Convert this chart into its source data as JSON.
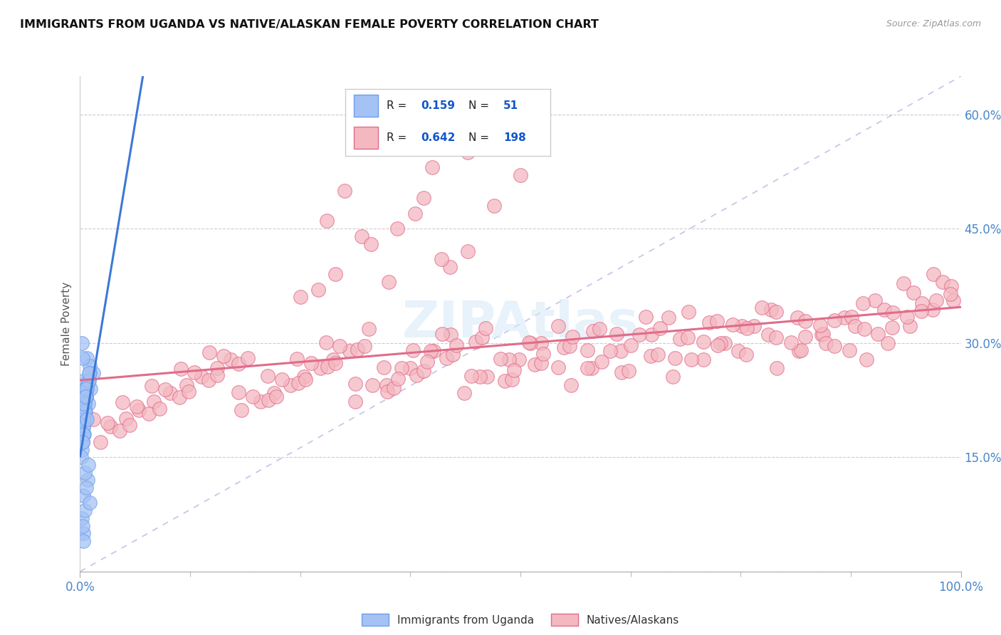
{
  "title": "IMMIGRANTS FROM UGANDA VS NATIVE/ALASKAN FEMALE POVERTY CORRELATION CHART",
  "source_text": "Source: ZipAtlas.com",
  "ylabel": "Female Poverty",
  "x_min": 0.0,
  "x_max": 100.0,
  "y_min": 0.0,
  "y_max": 65.0,
  "yticks": [
    0.0,
    15.0,
    30.0,
    45.0,
    60.0
  ],
  "ytick_labels": [
    "",
    "15.0%",
    "30.0%",
    "45.0%",
    "60.0%"
  ],
  "xtick_labels": [
    "0.0%",
    "100.0%"
  ],
  "color_uganda": "#a4c2f4",
  "color_native": "#f4b8c1",
  "color_uganda_edge": "#6d9eeb",
  "color_native_edge": "#e06c8a",
  "color_uganda_line": "#3c78d8",
  "color_native_line": "#e06c8a",
  "color_tick_label": "#4a86c8",
  "watermark": "ZIPAtlas",
  "uganda_x": [
    0.5,
    0.8,
    0.3,
    1.2,
    0.2,
    0.6,
    0.4,
    1.5,
    0.3,
    0.7,
    0.4,
    0.5,
    1.1,
    0.9,
    0.5,
    0.2,
    0.4,
    0.7,
    1.0,
    0.3,
    0.15,
    0.45,
    0.6,
    0.35,
    0.8,
    1.1,
    0.3,
    0.5,
    0.7,
    0.4,
    0.25,
    0.9,
    0.55,
    0.35,
    0.65,
    1.0,
    0.45,
    0.75,
    0.3,
    0.6,
    0.2,
    0.4,
    0.85,
    0.5,
    1.1,
    0.35,
    0.7,
    0.25,
    0.55,
    0.95,
    0.4
  ],
  "uganda_y": [
    22.5,
    28.0,
    18.0,
    24.0,
    30.0,
    20.0,
    25.0,
    26.0,
    17.0,
    23.0,
    19.0,
    21.0,
    27.0,
    22.0,
    24.0,
    16.0,
    20.0,
    23.0,
    25.0,
    22.0,
    15.0,
    18.0,
    21.0,
    20.0,
    24.0,
    26.0,
    17.0,
    22.0,
    23.0,
    19.0,
    28.0,
    25.0,
    21.0,
    18.0,
    24.0,
    26.0,
    22.0,
    20.0,
    17.0,
    23.0,
    7.0,
    10.0,
    12.0,
    8.0,
    9.0,
    5.0,
    11.0,
    6.0,
    13.0,
    14.0,
    4.0
  ],
  "native_x": [
    5.2,
    8.4,
    12.1,
    15.6,
    18.3,
    22.0,
    25.4,
    28.7,
    31.2,
    34.8,
    37.5,
    40.1,
    43.6,
    46.2,
    49.8,
    52.3,
    55.7,
    58.1,
    61.4,
    64.9,
    67.3,
    70.8,
    73.2,
    76.5,
    79.1,
    81.6,
    84.2,
    86.8,
    89.3,
    91.7,
    94.2,
    96.8,
    99.1,
    3.4,
    6.7,
    10.2,
    13.8,
    17.1,
    20.5,
    23.9,
    27.3,
    30.6,
    33.2,
    36.5,
    39.8,
    42.1,
    45.4,
    48.7,
    51.1,
    54.3,
    57.6,
    60.2,
    63.5,
    66.8,
    69.4,
    72.7,
    75.1,
    78.4,
    81.8,
    84.3,
    87.6,
    90.2,
    93.5,
    96.9,
    4.5,
    7.8,
    11.3,
    14.6,
    18.0,
    21.4,
    24.8,
    28.1,
    31.5,
    34.9,
    38.2,
    41.6,
    44.9,
    48.2,
    51.6,
    54.9,
    58.2,
    61.5,
    64.8,
    68.1,
    71.4,
    74.7,
    78.1,
    81.4,
    84.7,
    88.0,
    91.3,
    94.6,
    97.9,
    2.3,
    5.6,
    9.0,
    12.3,
    15.6,
    19.0,
    22.3,
    25.6,
    29.0,
    32.3,
    35.6,
    39.0,
    42.3,
    45.6,
    49.0,
    52.3,
    55.6,
    59.0,
    62.3,
    65.6,
    69.0,
    72.3,
    75.6,
    79.0,
    82.3,
    85.6,
    89.0,
    92.3,
    95.6,
    98.9,
    1.5,
    4.8,
    8.1,
    11.4,
    14.7,
    18.0,
    21.3,
    24.6,
    27.9,
    31.2,
    34.5,
    37.8,
    41.1,
    44.4,
    47.7,
    51.0,
    54.3,
    57.6,
    60.9,
    64.2,
    67.5,
    70.8,
    74.1,
    77.4,
    80.7,
    84.0,
    87.3,
    90.6,
    93.9,
    97.2,
    3.1,
    6.4,
    9.7,
    13.0,
    16.3,
    19.6,
    22.9,
    26.2,
    29.5,
    32.8,
    36.1,
    39.4,
    42.7,
    46.0,
    49.3,
    52.6,
    55.9,
    59.2,
    62.5,
    65.8,
    69.1,
    72.4,
    75.7,
    79.0,
    82.3,
    85.6,
    88.9,
    92.2,
    95.5,
    98.8,
    44.0,
    30.0,
    28.0,
    44.0,
    47.0,
    50.0,
    42.0,
    35.0,
    32.0,
    38.0,
    40.0,
    36.0,
    33.0,
    29.0,
    27.0,
    41.0,
    39.0,
    25.0
  ],
  "native_y": [
    20.1,
    22.3,
    24.5,
    26.7,
    21.2,
    23.4,
    25.6,
    27.8,
    22.3,
    24.5,
    26.7,
    28.9,
    23.4,
    25.6,
    27.8,
    30.0,
    24.5,
    26.7,
    28.9,
    31.1,
    25.6,
    27.8,
    30.0,
    32.2,
    26.7,
    28.9,
    31.1,
    33.3,
    27.8,
    30.0,
    32.2,
    34.4,
    35.6,
    19.0,
    21.2,
    23.4,
    25.6,
    27.8,
    22.3,
    24.5,
    26.7,
    28.9,
    24.5,
    26.7,
    28.9,
    31.1,
    25.6,
    27.8,
    30.0,
    32.2,
    26.7,
    28.9,
    31.1,
    33.3,
    27.8,
    30.0,
    32.2,
    34.4,
    29.0,
    31.2,
    33.4,
    35.6,
    37.8,
    39.0,
    18.5,
    20.7,
    22.9,
    25.1,
    27.3,
    22.5,
    24.7,
    26.9,
    29.1,
    23.6,
    25.8,
    28.0,
    30.2,
    25.0,
    27.2,
    29.4,
    31.6,
    26.1,
    28.3,
    30.5,
    32.7,
    28.9,
    31.1,
    33.3,
    30.0,
    32.2,
    34.4,
    36.6,
    38.0,
    17.0,
    19.2,
    21.4,
    23.6,
    25.8,
    28.0,
    23.0,
    25.2,
    27.4,
    29.6,
    24.1,
    26.3,
    28.5,
    30.7,
    25.2,
    27.4,
    29.6,
    31.8,
    26.3,
    28.5,
    30.7,
    32.9,
    28.5,
    30.7,
    32.9,
    29.6,
    31.8,
    34.0,
    35.2,
    37.4,
    20.0,
    22.2,
    24.4,
    26.6,
    28.8,
    23.5,
    25.7,
    27.9,
    30.1,
    24.6,
    26.8,
    29.0,
    31.2,
    25.7,
    27.9,
    30.1,
    26.8,
    29.0,
    31.2,
    33.4,
    28.0,
    30.2,
    32.4,
    34.6,
    30.1,
    32.3,
    29.0,
    31.2,
    33.4,
    35.6,
    19.5,
    21.7,
    23.9,
    26.1,
    28.3,
    23.0,
    25.2,
    27.4,
    29.6,
    31.8,
    25.3,
    27.5,
    29.7,
    31.9,
    26.4,
    28.6,
    30.8,
    27.5,
    29.7,
    31.9,
    34.1,
    29.7,
    31.9,
    34.1,
    30.8,
    33.0,
    35.2,
    32.0,
    34.2,
    36.4,
    42.0,
    50.0,
    46.0,
    55.0,
    48.0,
    52.0,
    40.0,
    38.0,
    44.0,
    47.0,
    53.0,
    45.0,
    43.0,
    39.0,
    37.0,
    41.0,
    49.0,
    36.0
  ]
}
